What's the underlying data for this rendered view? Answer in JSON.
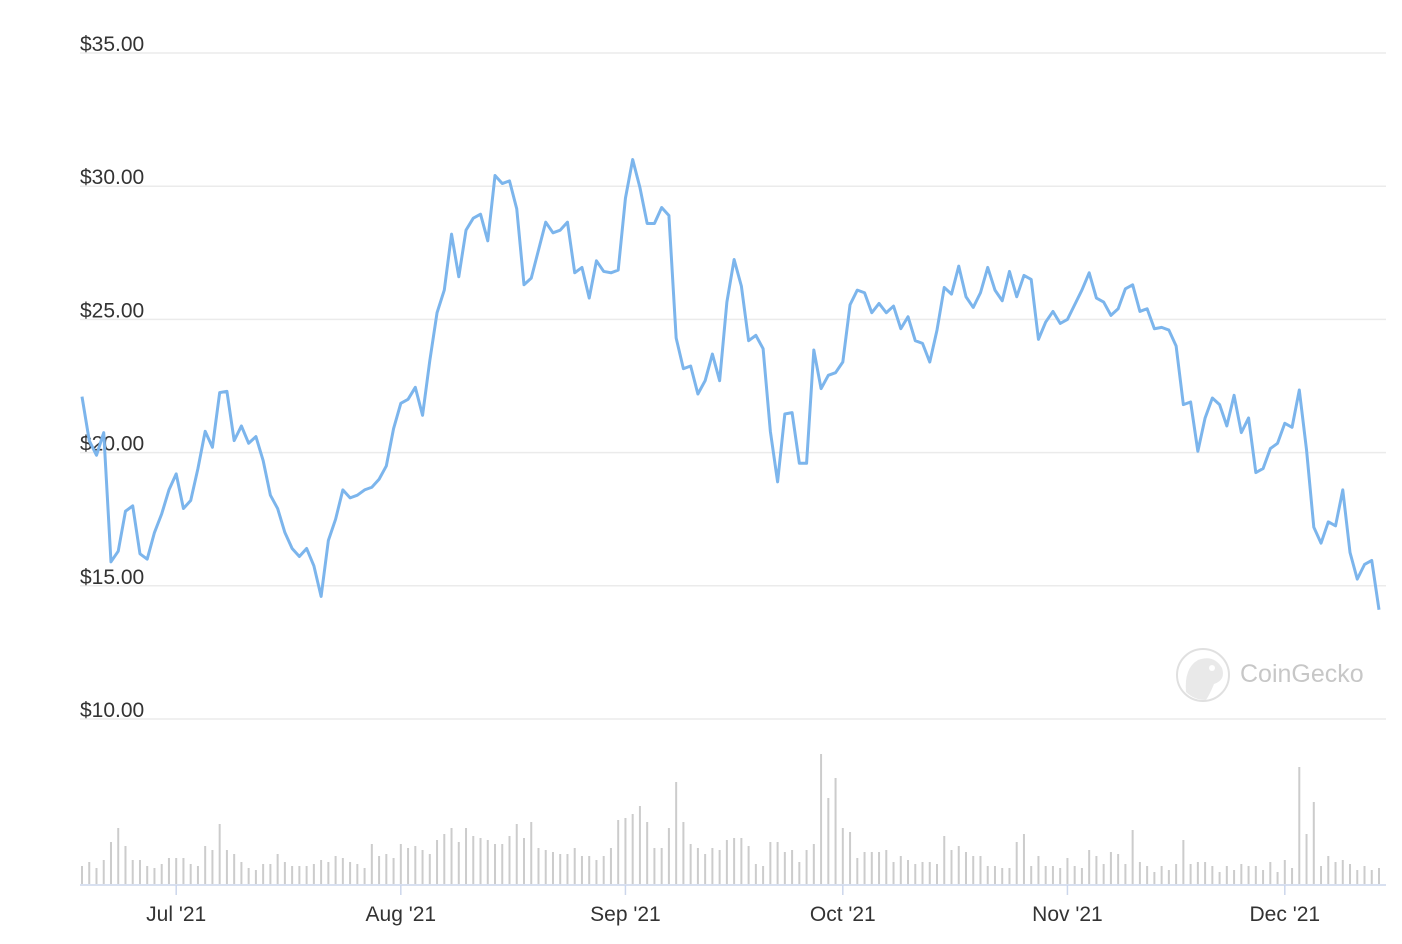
{
  "chart_data": {
    "type": "line",
    "color": "#7cb5ec",
    "volume_color": "#cccccc",
    "watermark": "CoinGecko",
    "ylim": [
      10,
      35
    ],
    "yticks": [
      {
        "value": 10,
        "label": "$10.00"
      },
      {
        "value": 15,
        "label": "$15.00"
      },
      {
        "value": 20,
        "label": "$20.00"
      },
      {
        "value": 25,
        "label": "$25.00"
      },
      {
        "value": 30,
        "label": "$30.00"
      },
      {
        "value": 35,
        "label": "$35.00"
      }
    ],
    "grid": true,
    "categories": [
      null,
      null,
      null,
      null,
      null,
      null,
      null,
      null,
      null,
      null,
      null,
      null,
      null,
      "Jul '21",
      null,
      null,
      null,
      null,
      null,
      null,
      null,
      null,
      null,
      null,
      null,
      null,
      null,
      null,
      null,
      null,
      null,
      null,
      null,
      null,
      null,
      null,
      null,
      null,
      null,
      null,
      null,
      null,
      null,
      null,
      "Aug '21",
      null,
      null,
      null,
      null,
      null,
      null,
      null,
      null,
      null,
      null,
      null,
      null,
      null,
      null,
      null,
      null,
      null,
      null,
      null,
      null,
      null,
      null,
      null,
      null,
      null,
      null,
      null,
      null,
      null,
      null,
      "Sep '21",
      null,
      null,
      null,
      null,
      null,
      null,
      null,
      null,
      null,
      null,
      null,
      null,
      null,
      null,
      null,
      null,
      null,
      null,
      null,
      null,
      null,
      null,
      null,
      null,
      null,
      null,
      null,
      null,
      null,
      "Oct '21",
      null,
      null,
      null,
      null,
      null,
      null,
      null,
      null,
      null,
      null,
      null,
      null,
      null,
      null,
      null,
      null,
      null,
      null,
      null,
      null,
      null,
      null,
      null,
      null,
      null,
      null,
      null,
      null,
      null,
      null,
      "Nov '21",
      null,
      null,
      null,
      null,
      null,
      null,
      null,
      null,
      null,
      null,
      null,
      null,
      null,
      null,
      null,
      null,
      null,
      null,
      null,
      null,
      null,
      null,
      null,
      null,
      null,
      null,
      null,
      null,
      null,
      "Dec '21",
      null,
      null,
      null,
      null,
      null,
      null,
      null,
      null,
      null,
      null,
      null,
      null,
      null
    ],
    "values": [
      22.1,
      20.45,
      19.9,
      20.75,
      15.9,
      16.3,
      17.8,
      18.0,
      16.2,
      16.0,
      17.0,
      17.7,
      18.6,
      19.2,
      17.9,
      18.2,
      19.4,
      20.8,
      20.2,
      22.25,
      22.3,
      20.45,
      21.0,
      20.35,
      20.6,
      19.7,
      18.4,
      17.9,
      17.0,
      16.4,
      16.1,
      16.4,
      15.75,
      14.6,
      16.7,
      17.5,
      18.6,
      18.3,
      18.4,
      18.6,
      18.7,
      19.0,
      19.5,
      20.9,
      21.85,
      22.0,
      22.45,
      21.4,
      23.45,
      25.25,
      26.1,
      28.2,
      26.6,
      28.35,
      28.8,
      28.95,
      27.95,
      30.4,
      30.1,
      30.2,
      29.15,
      26.3,
      26.55,
      27.6,
      28.65,
      28.25,
      28.35,
      28.65,
      26.75,
      26.95,
      25.8,
      27.2,
      26.8,
      26.75,
      26.85,
      29.55,
      31.0,
      29.95,
      28.6,
      28.6,
      29.2,
      28.9,
      24.3,
      23.15,
      23.25,
      22.2,
      22.7,
      23.7,
      22.7,
      25.65,
      27.25,
      26.25,
      24.2,
      24.4,
      23.9,
      20.8,
      18.9,
      21.45,
      21.5,
      19.6,
      19.6,
      23.85,
      22.4,
      22.9,
      23.0,
      23.4,
      25.55,
      26.1,
      26.0,
      25.25,
      25.6,
      25.25,
      25.5,
      24.65,
      25.1,
      24.2,
      24.1,
      23.4,
      24.6,
      26.2,
      25.95,
      27.0,
      25.85,
      25.45,
      26.0,
      26.95,
      26.1,
      25.7,
      26.8,
      25.85,
      26.65,
      26.5,
      24.25,
      24.9,
      25.3,
      24.85,
      25.0,
      25.55,
      26.1,
      26.75,
      25.8,
      25.65,
      25.15,
      25.4,
      26.15,
      26.3,
      25.3,
      25.4,
      24.65,
      24.7,
      24.6,
      24.0,
      21.8,
      21.9,
      20.05,
      21.3,
      22.05,
      21.8,
      21.0,
      22.15,
      20.75,
      21.3,
      19.25,
      19.4,
      20.15,
      20.35,
      21.1,
      20.95,
      22.35,
      20.1,
      17.2,
      16.6,
      17.4,
      17.25,
      18.6,
      16.25,
      15.25,
      15.8,
      15.95,
      14.1
    ],
    "volume_values": [
      18,
      22,
      16,
      24,
      42,
      56,
      38,
      24,
      24,
      18,
      16,
      20,
      26,
      26,
      26,
      20,
      18,
      38,
      34,
      60,
      34,
      30,
      22,
      16,
      14,
      20,
      20,
      30,
      22,
      18,
      18,
      18,
      20,
      24,
      22,
      28,
      26,
      22,
      20,
      16,
      40,
      28,
      30,
      26,
      40,
      36,
      38,
      34,
      30,
      44,
      50,
      56,
      42,
      56,
      48,
      46,
      44,
      40,
      40,
      48,
      60,
      46,
      62,
      36,
      34,
      32,
      30,
      30,
      36,
      28,
      28,
      24,
      28,
      36,
      64,
      66,
      70,
      78,
      62,
      36,
      36,
      56,
      102,
      62,
      40,
      36,
      30,
      36,
      34,
      44,
      46,
      46,
      38,
      20,
      18,
      42,
      42,
      32,
      34,
      22,
      34,
      40,
      130,
      86,
      106,
      56,
      52,
      26,
      32,
      32,
      32,
      34,
      22,
      28,
      24,
      20,
      22,
      22,
      20,
      48,
      34,
      38,
      32,
      28,
      28,
      18,
      18,
      16,
      16,
      42,
      50,
      18,
      28,
      18,
      18,
      16,
      26,
      18,
      16,
      34,
      28,
      20,
      32,
      30,
      20,
      54,
      22,
      18,
      12,
      18,
      14,
      20,
      44,
      20,
      22,
      22,
      18,
      12,
      18,
      14,
      20,
      18,
      18,
      14,
      22,
      12,
      24,
      16,
      117,
      50,
      82,
      18,
      28,
      22,
      24,
      20,
      14,
      18,
      14,
      16
    ]
  }
}
